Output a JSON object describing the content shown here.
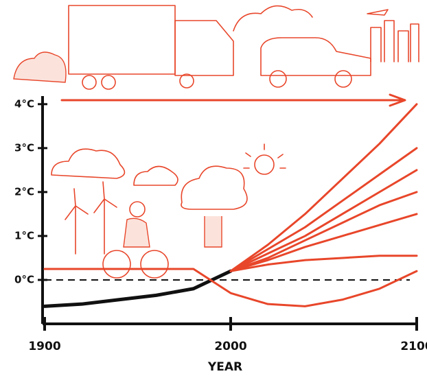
{
  "chart_data": {
    "type": "line",
    "x": [
      1900,
      1920,
      1940,
      1960,
      1980,
      2000,
      2020,
      2040,
      2060,
      2080,
      2100
    ],
    "series": [
      {
        "color": "#111111",
        "values": [
          -0.6,
          -0.55,
          -0.45,
          -0.35,
          -0.2,
          0.2,
          null,
          null,
          null,
          null,
          null
        ]
      },
      {
        "color": "#e8462a",
        "values": [
          null,
          null,
          null,
          null,
          null,
          0.2,
          0.8,
          1.5,
          2.3,
          3.1,
          4.0
        ]
      },
      {
        "color": "#e8462a",
        "values": [
          null,
          null,
          null,
          null,
          null,
          0.2,
          0.7,
          1.2,
          1.8,
          2.4,
          3.0
        ]
      },
      {
        "color": "#e8462a",
        "values": [
          null,
          null,
          null,
          null,
          null,
          0.2,
          0.6,
          1.0,
          1.5,
          2.0,
          2.5
        ]
      },
      {
        "color": "#e8462a",
        "values": [
          null,
          null,
          null,
          null,
          null,
          0.2,
          0.5,
          0.9,
          1.3,
          1.7,
          2.0
        ]
      },
      {
        "color": "#e8462a",
        "values": [
          null,
          null,
          null,
          null,
          null,
          0.2,
          0.45,
          0.75,
          1.0,
          1.25,
          1.5
        ]
      },
      {
        "color": "#e8462a",
        "values": [
          null,
          null,
          null,
          null,
          null,
          0.2,
          0.35,
          0.45,
          0.5,
          0.55,
          0.55
        ]
      },
      {
        "color": "#e8462a",
        "values": [
          0.25,
          0.25,
          0.25,
          0.25,
          0.25,
          -0.3,
          -0.55,
          -0.6,
          -0.45,
          -0.2,
          0.2
        ]
      }
    ],
    "reference_line": 0,
    "xlim": [
      1900,
      2100
    ],
    "xticks": [
      1900,
      2000,
      2100
    ],
    "ylim": [
      -1,
      4.2
    ],
    "yticks": [
      {
        "value": 0,
        "label": "0°C"
      },
      {
        "value": 1,
        "label": "1°C"
      },
      {
        "value": 2,
        "label": "2°C"
      },
      {
        "value": 3,
        "label": "3°C"
      },
      {
        "value": 4,
        "label": "4°C"
      }
    ],
    "x_label": "YEAR"
  }
}
